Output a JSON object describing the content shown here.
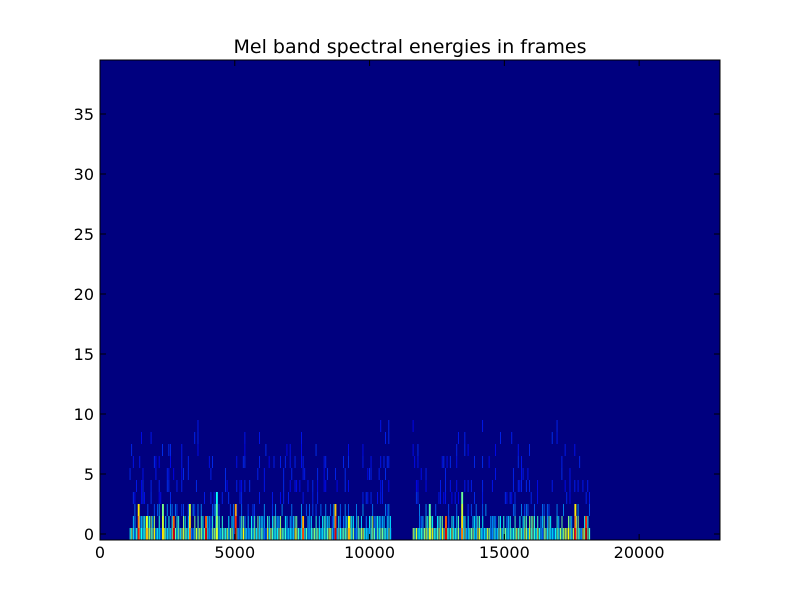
{
  "chart_data": {
    "type": "heatmap",
    "title": "Mel band spectral energies in frames",
    "xlabel": "",
    "ylabel": "",
    "xlim": [
      0,
      23000
    ],
    "ylim": [
      -0.5,
      39.5
    ],
    "xticks": [
      0,
      5000,
      10000,
      15000,
      20000
    ],
    "xtick_labels": [
      "0",
      "5000",
      "10000",
      "15000",
      "20000"
    ],
    "yticks": [
      0,
      5,
      10,
      15,
      20,
      25,
      30,
      35
    ],
    "ytick_labels": [
      "0",
      "5",
      "10",
      "15",
      "20",
      "25",
      "30",
      "35"
    ],
    "grid": false,
    "legend": "none",
    "bands": 40,
    "frames": 23000,
    "colormap": "jet",
    "background_color": "#00007f",
    "activity_regions": [
      {
        "x_start": 1100,
        "x_end": 10800
      },
      {
        "x_start": 11600,
        "x_end": 18200
      }
    ],
    "notable_columns": [
      {
        "x": 1400,
        "top_band": 2,
        "intensity": 0.85
      },
      {
        "x": 1700,
        "top_band": 1,
        "intensity": 0.7
      },
      {
        "x": 2300,
        "top_band": 2,
        "intensity": 0.65
      },
      {
        "x": 2700,
        "top_band": 1,
        "intensity": 0.9
      },
      {
        "x": 3300,
        "top_band": 2,
        "intensity": 0.75
      },
      {
        "x": 3900,
        "top_band": 1,
        "intensity": 0.9
      },
      {
        "x": 4300,
        "top_band": 3,
        "intensity": 0.6
      },
      {
        "x": 5000,
        "top_band": 2,
        "intensity": 0.95
      },
      {
        "x": 7500,
        "top_band": 1,
        "intensity": 0.8
      },
      {
        "x": 8700,
        "top_band": 2,
        "intensity": 0.9
      },
      {
        "x": 9200,
        "top_band": 1,
        "intensity": 0.7
      },
      {
        "x": 12200,
        "top_band": 2,
        "intensity": 0.6
      },
      {
        "x": 12800,
        "top_band": 1,
        "intensity": 0.9
      },
      {
        "x": 13400,
        "top_band": 3,
        "intensity": 0.75
      },
      {
        "x": 17600,
        "top_band": 2,
        "intensity": 0.85
      },
      {
        "x": 18000,
        "top_band": 1,
        "intensity": 0.95
      }
    ]
  }
}
